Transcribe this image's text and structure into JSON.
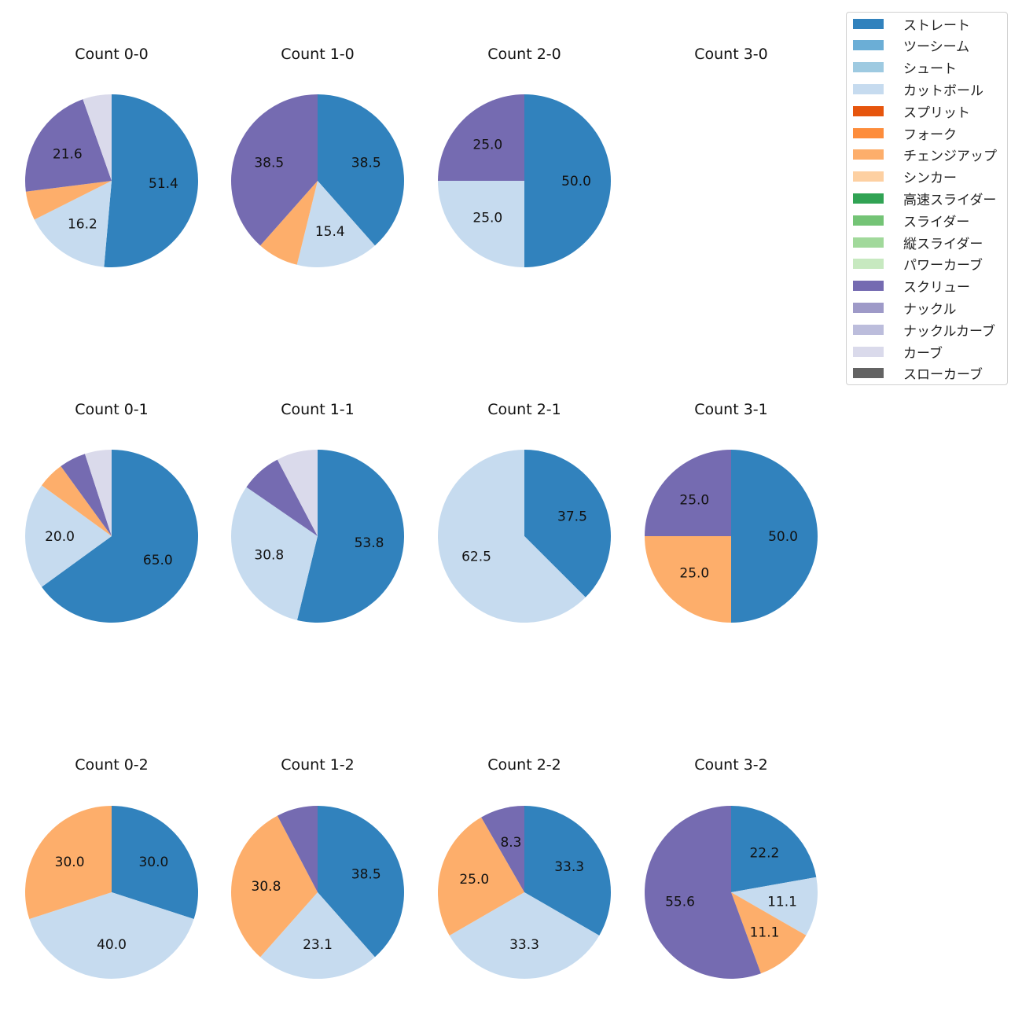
{
  "chart_data": {
    "type": "pie",
    "direction": "clockwise",
    "start": "top",
    "legend_position": "top-right",
    "legend": [
      {
        "name": "ストレート",
        "color": "#3182bd"
      },
      {
        "name": "ツーシーム",
        "color": "#6baed6"
      },
      {
        "name": "シュート",
        "color": "#9ecae1"
      },
      {
        "name": "カットボール",
        "color": "#c6dbef"
      },
      {
        "name": "スプリット",
        "color": "#e6550d"
      },
      {
        "name": "フォーク",
        "color": "#fd8d3c"
      },
      {
        "name": "チェンジアップ",
        "color": "#fdae6b"
      },
      {
        "name": "シンカー",
        "color": "#fdd0a2"
      },
      {
        "name": "高速スライダー",
        "color": "#31a354"
      },
      {
        "name": "スライダー",
        "color": "#74c476"
      },
      {
        "name": "縦スライダー",
        "color": "#a1d99b"
      },
      {
        "name": "パワーカーブ",
        "color": "#c7e9c0"
      },
      {
        "name": "スクリュー",
        "color": "#756bb1"
      },
      {
        "name": "ナックル",
        "color": "#9e9ac8"
      },
      {
        "name": "ナックルカーブ",
        "color": "#bcbddc"
      },
      {
        "name": "カーブ",
        "color": "#dadaeb"
      },
      {
        "name": "スローカーブ",
        "color": "#636363"
      }
    ],
    "pies": [
      {
        "title": "Count 0-0",
        "slices": [
          {
            "pitch": "ストレート",
            "value": 51.4,
            "label": "51.4"
          },
          {
            "pitch": "カットボール",
            "value": 16.2,
            "label": "16.2"
          },
          {
            "pitch": "チェンジアップ",
            "value": 5.4,
            "label": ""
          },
          {
            "pitch": "スクリュー",
            "value": 21.6,
            "label": "21.6"
          },
          {
            "pitch": "カーブ",
            "value": 5.4,
            "label": ""
          }
        ]
      },
      {
        "title": "Count 1-0",
        "slices": [
          {
            "pitch": "ストレート",
            "value": 38.5,
            "label": "38.5"
          },
          {
            "pitch": "カットボール",
            "value": 15.4,
            "label": "15.4"
          },
          {
            "pitch": "チェンジアップ",
            "value": 7.7,
            "label": ""
          },
          {
            "pitch": "スクリュー",
            "value": 38.5,
            "label": "38.5"
          }
        ]
      },
      {
        "title": "Count 2-0",
        "slices": [
          {
            "pitch": "ストレート",
            "value": 50.0,
            "label": "50.0"
          },
          {
            "pitch": "カットボール",
            "value": 25.0,
            "label": "25.0"
          },
          {
            "pitch": "スクリュー",
            "value": 25.0,
            "label": "25.0"
          }
        ]
      },
      {
        "title": "Count 3-0",
        "slices": []
      },
      {
        "title": "Count 0-1",
        "slices": [
          {
            "pitch": "ストレート",
            "value": 65.0,
            "label": "65.0"
          },
          {
            "pitch": "カットボール",
            "value": 20.0,
            "label": "20.0"
          },
          {
            "pitch": "チェンジアップ",
            "value": 5.0,
            "label": ""
          },
          {
            "pitch": "スクリュー",
            "value": 5.0,
            "label": ""
          },
          {
            "pitch": "カーブ",
            "value": 5.0,
            "label": ""
          }
        ]
      },
      {
        "title": "Count 1-1",
        "slices": [
          {
            "pitch": "ストレート",
            "value": 53.8,
            "label": "53.8"
          },
          {
            "pitch": "カットボール",
            "value": 30.8,
            "label": "30.8"
          },
          {
            "pitch": "スクリュー",
            "value": 7.7,
            "label": ""
          },
          {
            "pitch": "カーブ",
            "value": 7.7,
            "label": ""
          }
        ]
      },
      {
        "title": "Count 2-1",
        "slices": [
          {
            "pitch": "ストレート",
            "value": 37.5,
            "label": "37.5"
          },
          {
            "pitch": "カットボール",
            "value": 62.5,
            "label": "62.5"
          }
        ]
      },
      {
        "title": "Count 3-1",
        "slices": [
          {
            "pitch": "ストレート",
            "value": 50.0,
            "label": "50.0"
          },
          {
            "pitch": "チェンジアップ",
            "value": 25.0,
            "label": "25.0"
          },
          {
            "pitch": "スクリュー",
            "value": 25.0,
            "label": "25.0"
          }
        ]
      },
      {
        "title": "Count 0-2",
        "slices": [
          {
            "pitch": "ストレート",
            "value": 30.0,
            "label": "30.0"
          },
          {
            "pitch": "カットボール",
            "value": 40.0,
            "label": "40.0"
          },
          {
            "pitch": "チェンジアップ",
            "value": 30.0,
            "label": "30.0"
          }
        ]
      },
      {
        "title": "Count 1-2",
        "slices": [
          {
            "pitch": "ストレート",
            "value": 38.5,
            "label": "38.5"
          },
          {
            "pitch": "カットボール",
            "value": 23.1,
            "label": "23.1"
          },
          {
            "pitch": "チェンジアップ",
            "value": 30.8,
            "label": "30.8"
          },
          {
            "pitch": "スクリュー",
            "value": 7.7,
            "label": ""
          }
        ]
      },
      {
        "title": "Count 2-2",
        "slices": [
          {
            "pitch": "ストレート",
            "value": 33.3,
            "label": "33.3"
          },
          {
            "pitch": "カットボール",
            "value": 33.3,
            "label": "33.3"
          },
          {
            "pitch": "チェンジアップ",
            "value": 25.0,
            "label": "25.0"
          },
          {
            "pitch": "スクリュー",
            "value": 8.3,
            "label": "8.3"
          }
        ]
      },
      {
        "title": "Count 3-2",
        "slices": [
          {
            "pitch": "ストレート",
            "value": 22.2,
            "label": "22.2"
          },
          {
            "pitch": "カットボール",
            "value": 11.1,
            "label": "11.1"
          },
          {
            "pitch": "チェンジアップ",
            "value": 11.1,
            "label": "11.1"
          },
          {
            "pitch": "スクリュー",
            "value": 55.6,
            "label": "55.6"
          }
        ]
      }
    ]
  }
}
